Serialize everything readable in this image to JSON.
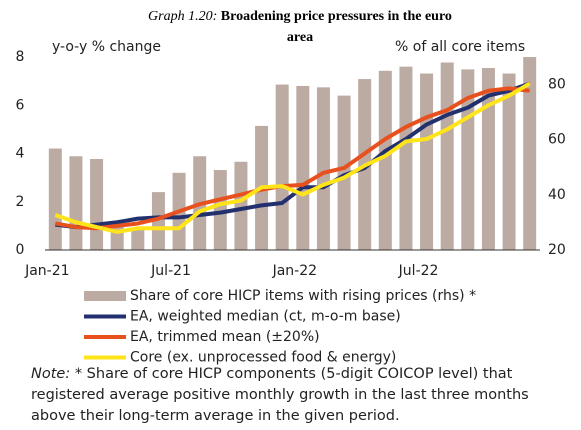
{
  "chart_data": {
    "type": "bar-line",
    "title_label": "Graph 1.20:",
    "title": "Broadening price pressures in the euro area",
    "y_label": "y-o-y % change",
    "y2_label": "% of all core items",
    "categories": [
      "Jan-21",
      null,
      null,
      null,
      null,
      null,
      "Jul-21",
      null,
      null,
      null,
      null,
      null,
      "Jan-22",
      null,
      null,
      null,
      null,
      null,
      "Jul-22",
      null,
      null,
      null,
      null,
      null
    ],
    "ylim": [
      0,
      8
    ],
    "yticks": [
      0,
      2,
      4,
      6,
      8
    ],
    "y2lim": [
      20,
      90
    ],
    "y2ticks": [
      20,
      40,
      60,
      80
    ],
    "series": [
      {
        "name": "Share of core HICP items with rising prices (rhs) *",
        "type": "bar",
        "axis": "y2",
        "color": "#bcaba3",
        "values": [
          56.8,
          54,
          53,
          29,
          28,
          41,
          48,
          54,
          49,
          52,
          65,
          80,
          79.5,
          79,
          76,
          82,
          85,
          86.5,
          84,
          88,
          85.5,
          86,
          84,
          90
        ]
      },
      {
        "name": "EA, weighted median (ct, m-o-m base)",
        "type": "line",
        "color": "#22306e",
        "values": [
          1.05,
          0.95,
          1.05,
          1.15,
          1.3,
          1.35,
          1.35,
          1.45,
          1.55,
          1.7,
          1.85,
          1.95,
          2.6,
          2.6,
          3.1,
          3.4,
          4.1,
          4.6,
          5.2,
          5.6,
          5.9,
          6.4,
          6.6,
          6.9
        ]
      },
      {
        "name": "EA, trimmed mean (±20%)",
        "type": "line",
        "color": "#e8501e",
        "values": [
          1.1,
          0.95,
          0.9,
          1.0,
          1.1,
          1.3,
          1.6,
          1.9,
          2.1,
          2.3,
          2.5,
          2.65,
          2.7,
          3.2,
          3.4,
          4.0,
          4.6,
          5.1,
          5.5,
          5.8,
          6.3,
          6.6,
          6.7,
          6.6
        ]
      },
      {
        "name": "Core (ex. unprocessed food & energy)",
        "type": "line",
        "color": "#ffe41a",
        "values": [
          1.45,
          1.15,
          0.95,
          0.75,
          0.9,
          0.9,
          0.9,
          1.6,
          1.9,
          2.05,
          2.6,
          2.65,
          2.3,
          2.7,
          3.0,
          3.5,
          3.9,
          4.5,
          4.6,
          5.0,
          5.5,
          6.0,
          6.4,
          6.9
        ]
      }
    ],
    "note_label": "Note:",
    "note": "* Share of core HICP components (5-digit COICOP level) that registered average positive monthly growth in the last three months above their long-term average in the given period."
  }
}
